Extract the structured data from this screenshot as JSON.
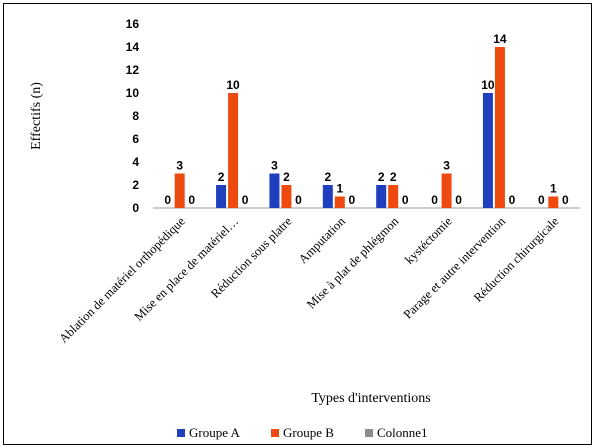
{
  "chart_data": {
    "type": "bar",
    "xlabel": "Types d'interventions",
    "ylabel": "Effectifs (n)",
    "ylim": [
      0,
      16
    ],
    "yticks": [
      0,
      2,
      4,
      6,
      8,
      10,
      12,
      14,
      16
    ],
    "grid": false,
    "legend_position": "bottom",
    "categories": [
      "Ablation de matériel orthopédique",
      "Mise en place de matériel…",
      "Réduction sous platre",
      "Amputation",
      "Mise à plat de phlégmon",
      "kystéctomie",
      "Parage et autre intervention",
      "Réduction chirurgicale"
    ],
    "series": [
      {
        "name": "Groupe A",
        "color": "#1f3fbf",
        "values": [
          0,
          2,
          3,
          2,
          2,
          0,
          10,
          0
        ]
      },
      {
        "name": "Groupe B",
        "color": "#ee4a10",
        "values": [
          3,
          10,
          2,
          1,
          2,
          3,
          14,
          1
        ]
      },
      {
        "name": "Colonne1",
        "color": "#8c8c8c",
        "values": [
          0,
          0,
          0,
          0,
          0,
          0,
          0,
          0
        ]
      }
    ]
  }
}
